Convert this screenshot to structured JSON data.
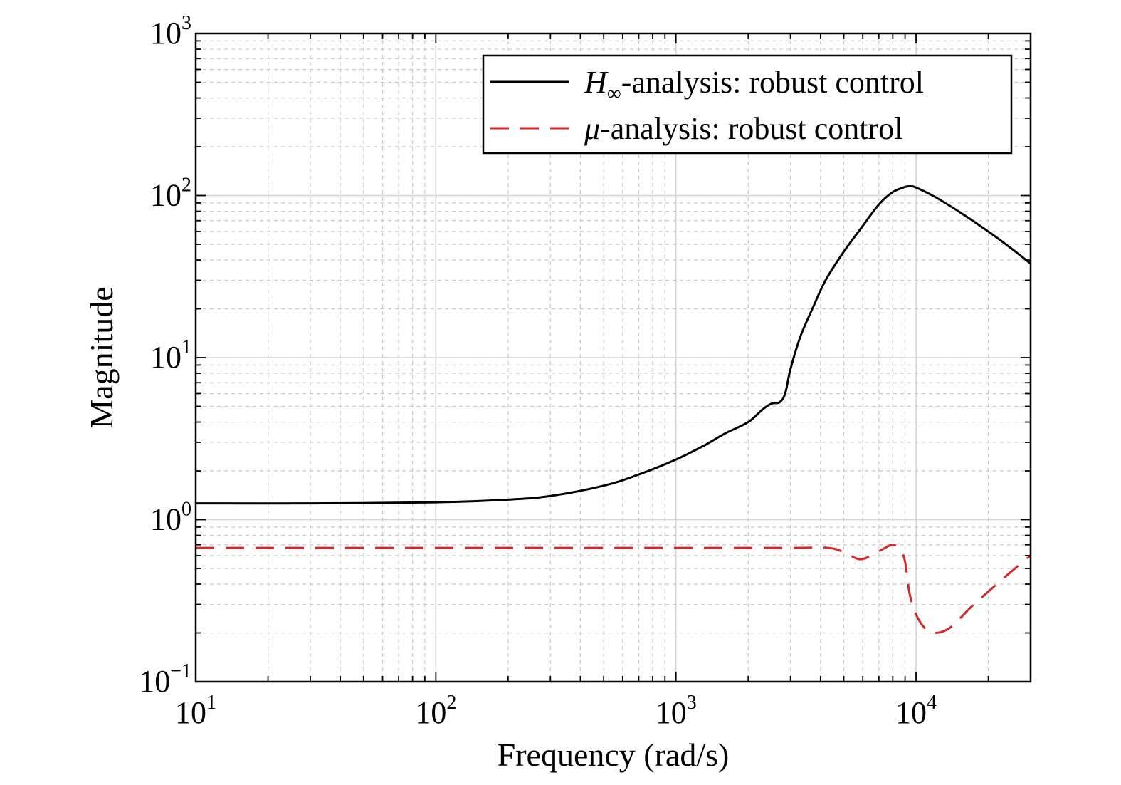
{
  "chart_data": {
    "type": "line",
    "xlabel": "Frequency (rad/s)",
    "ylabel": "Magnitude",
    "xscale": "log",
    "yscale": "log",
    "xlim": [
      10,
      30000
    ],
    "ylim": [
      0.1,
      1000
    ],
    "grid": true,
    "legend_position": "top-right",
    "x_ticks": [
      {
        "base": "10",
        "exp": "1",
        "value": 10
      },
      {
        "base": "10",
        "exp": "2",
        "value": 100
      },
      {
        "base": "10",
        "exp": "3",
        "value": 1000
      },
      {
        "base": "10",
        "exp": "4",
        "value": 10000
      }
    ],
    "y_ticks": [
      {
        "base": "10",
        "exp": "−1",
        "value": 0.1
      },
      {
        "base": "10",
        "exp": "0",
        "value": 1
      },
      {
        "base": "10",
        "exp": "1",
        "value": 10
      },
      {
        "base": "10",
        "exp": "2",
        "value": 100
      },
      {
        "base": "10",
        "exp": "3",
        "value": 1000
      }
    ],
    "series": [
      {
        "name": "H∞-analysis: robust control",
        "legend_symbol": "H",
        "legend_symbol_sub": "∞",
        "legend_rest": "-analysis: robust control",
        "color": "#000000",
        "style": "solid",
        "x": [
          10,
          30,
          100,
          200,
          300,
          500,
          700,
          1000,
          1300,
          1600,
          2000,
          2300,
          2500,
          2700,
          2850,
          3000,
          3300,
          3700,
          4200,
          5000,
          6000,
          7000,
          8000,
          9000,
          9500,
          10000,
          12000,
          15000,
          20000,
          25000,
          30000
        ],
        "y": [
          1.26,
          1.26,
          1.28,
          1.33,
          1.4,
          1.62,
          1.9,
          2.35,
          2.85,
          3.4,
          4.0,
          4.8,
          5.2,
          5.3,
          6.0,
          8.5,
          13.5,
          20,
          30,
          45,
          65,
          88,
          105,
          113,
          114,
          112,
          98,
          80,
          60,
          47,
          38
        ]
      },
      {
        "name": "μ-analysis: robust control",
        "legend_symbol": "μ",
        "legend_symbol_sub": "",
        "legend_rest": "-analysis: robust control",
        "color": "#d62728",
        "style": "dashed",
        "x": [
          10,
          100,
          1000,
          3000,
          4300,
          5000,
          5800,
          6500,
          7300,
          8000,
          8600,
          9000,
          9400,
          10000,
          11000,
          12000,
          13500,
          15000,
          17000,
          20000,
          25000,
          30000
        ],
        "y": [
          0.67,
          0.67,
          0.67,
          0.67,
          0.67,
          0.63,
          0.57,
          0.6,
          0.66,
          0.7,
          0.65,
          0.55,
          0.35,
          0.26,
          0.21,
          0.2,
          0.21,
          0.24,
          0.29,
          0.36,
          0.48,
          0.6
        ]
      }
    ]
  }
}
